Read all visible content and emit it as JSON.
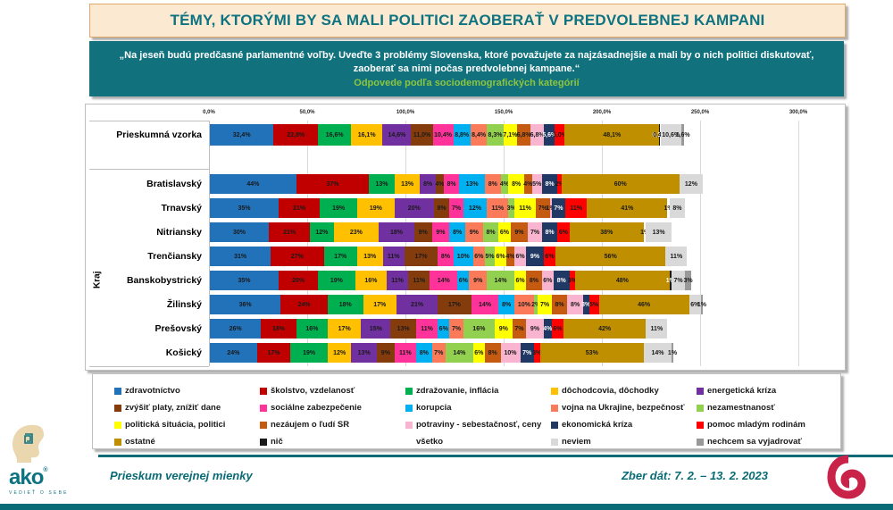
{
  "header": {
    "title": "TÉMY, KTORÝMI BY SA MALI POLITICI ZAOBERAŤ V PREDVOLEBNEJ KAMPANI"
  },
  "subtitle": {
    "quote": "„Na jeseň budú predčasné parlamentné voľby. Uveďte 3 problémy Slovenska, ktoré považujete za najzásadnejšie a mali by o nich politici diskutovať, zaoberať sa nimi počas predvolebnej kampane.“",
    "note": "Odpovede podľa sociodemografických kategórií"
  },
  "chart_data": {
    "type": "bar",
    "orientation": "horizontal-stacked",
    "grid": true,
    "legend_position": "bottom",
    "xlim": [
      0,
      300
    ],
    "x_tick_labels": [
      "0,0%",
      "50,0%",
      "100,0%",
      "150,0%",
      "200,0%",
      "250,0%",
      "300,0%"
    ],
    "y_group_label": "Kraj",
    "categories": [
      {
        "label": "zdravotníctvo",
        "color": "#2272BA",
        "text": "dark"
      },
      {
        "label": "školstvo, vzdelanosť",
        "color": "#C00000",
        "text": "dark"
      },
      {
        "label": "zdražovanie, inflácia",
        "color": "#00B050",
        "text": "dark"
      },
      {
        "label": "dôchodcovia, dôchodky",
        "color": "#FFC000",
        "text": "dark"
      },
      {
        "label": "energetická kríza",
        "color": "#7030A0",
        "text": "dark"
      },
      {
        "label": "zvýšiť platy, znížiť dane",
        "color": "#843C0C",
        "text": "dark"
      },
      {
        "label": "sociálne zabezpečenie",
        "color": "#FF3399",
        "text": "dark"
      },
      {
        "label": "korupcia",
        "color": "#00B0F0",
        "text": "dark"
      },
      {
        "label": "vojna na Ukrajine, bezpečnosť",
        "color": "#FA7A5A",
        "text": "dark"
      },
      {
        "label": "nezamestnanosť",
        "color": "#92D050",
        "text": "dark"
      },
      {
        "label": "politická situácia, politici",
        "color": "#FFFF00",
        "text": "dark"
      },
      {
        "label": "nezáujem o ľudí SR",
        "color": "#C55A11",
        "text": "dark"
      },
      {
        "label": "potraviny - sebestačnosť, ceny",
        "color": "#F9B5D0",
        "text": "dark"
      },
      {
        "label": "ekonomická kríza",
        "color": "#1F3864",
        "text": "light"
      },
      {
        "label": "pomoc mladým rodinám",
        "color": "#FF0000",
        "text": "dark"
      },
      {
        "label": "ostatné",
        "color": "#BF8F00",
        "text": "dark"
      },
      {
        "label": "nič",
        "color": "#1A1A1A",
        "text": "light"
      },
      {
        "label": "všetko",
        "color": "#FFFFFF",
        "text": "dark"
      },
      {
        "label": "neviem",
        "color": "#D9D9D9",
        "text": "dark"
      },
      {
        "label": "nechcem sa vyjadrovať",
        "color": "#999999",
        "text": "dark"
      }
    ],
    "rows": [
      {
        "label": "Prieskumná vzorka",
        "group": "sample",
        "decimals": 1,
        "values": [
          32.4,
          22.8,
          16.6,
          16.1,
          14.6,
          11.0,
          10.4,
          8.8,
          8.4,
          8.3,
          7.1,
          6.8,
          6.8,
          5.6,
          5.0,
          48.1,
          0.2,
          0.4,
          10.6,
          1.6
        ]
      },
      {
        "label": "Bratislavský",
        "group": "kraj",
        "decimals": 0,
        "values": [
          44,
          37,
          13,
          13,
          8,
          4,
          8,
          13,
          8,
          4,
          8,
          4,
          5,
          8,
          2,
          60,
          0,
          0,
          12,
          0
        ]
      },
      {
        "label": "Trnavský",
        "group": "kraj",
        "decimals": 0,
        "values": [
          35,
          21,
          19,
          19,
          20,
          8,
          7,
          12,
          11,
          3,
          11,
          7,
          1,
          7,
          11,
          41,
          0,
          1,
          8,
          0
        ]
      },
      {
        "label": "Nitriansky",
        "group": "kraj",
        "decimals": 0,
        "values": [
          30,
          21,
          12,
          23,
          18,
          9,
          9,
          8,
          9,
          8,
          6,
          9,
          7,
          8,
          6,
          38,
          0,
          1,
          13,
          0
        ]
      },
      {
        "label": "Trenčiansky",
        "group": "kraj",
        "decimals": 0,
        "values": [
          31,
          27,
          17,
          13,
          11,
          17,
          8,
          10,
          6,
          5,
          6,
          4,
          6,
          9,
          6,
          56,
          0,
          0,
          11,
          0
        ]
      },
      {
        "label": "Banskobystrický",
        "group": "kraj",
        "decimals": 0,
        "values": [
          35,
          20,
          19,
          16,
          11,
          11,
          14,
          6,
          9,
          14,
          6,
          8,
          6,
          8,
          3,
          48,
          1,
          0,
          7,
          3
        ]
      },
      {
        "label": "Žilinský",
        "group": "kraj",
        "decimals": 0,
        "values": [
          36,
          24,
          18,
          17,
          21,
          17,
          14,
          8,
          10,
          2,
          7,
          8,
          8,
          3,
          5,
          46,
          0,
          0,
          6,
          1
        ]
      },
      {
        "label": "Prešovský",
        "group": "kraj",
        "decimals": 0,
        "values": [
          26,
          18,
          16,
          17,
          15,
          13,
          11,
          6,
          7,
          16,
          9,
          7,
          9,
          4,
          6,
          42,
          0,
          0,
          11,
          0
        ]
      },
      {
        "label": "Košický",
        "group": "kraj",
        "decimals": 0,
        "values": [
          24,
          17,
          19,
          12,
          13,
          9,
          11,
          8,
          7,
          14,
          6,
          8,
          10,
          7,
          3,
          53,
          0,
          0,
          14,
          1
        ]
      }
    ]
  },
  "footer": {
    "survey_label": "Prieskum verejnej mienky",
    "dates_label": "Zber dát: 7. 2. – 13. 2. 2023",
    "logo_text": "ako",
    "logo_tagline": "VEDIEŤ O SEBE"
  },
  "colors": {
    "teal": "#0E7380",
    "teal_dark": "#0A6B76",
    "cream": "#FBE9D2",
    "green_note": "#8CC63F",
    "focus_crimson": "#C9234A"
  }
}
